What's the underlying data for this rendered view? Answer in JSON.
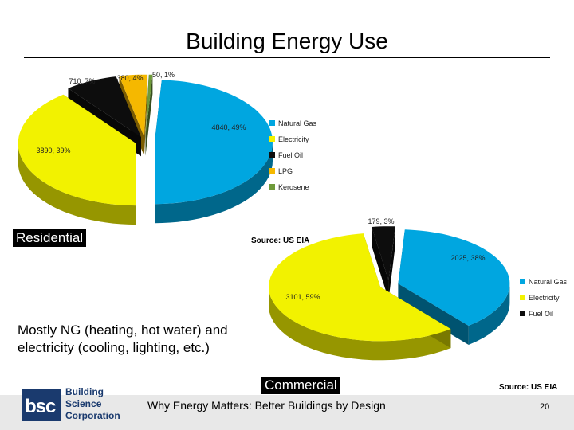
{
  "slide": {
    "title": "Building Energy Use",
    "residential_tag": "Residential",
    "commercial_tag": "Commercial",
    "source_residential": "Source: US EIA",
    "source_commercial": "Source: US EIA",
    "body_line1": "Mostly NG (heating, hot water) and",
    "body_line2": "electricity (cooling, lighting, etc.)",
    "footer_text": "Why Energy Matters: Better Buildings by Design",
    "page_number": "20",
    "logo_abbr": "bsc",
    "logo_line1": "Building",
    "logo_line2": "Science",
    "logo_line3": "Corporation"
  },
  "colors": {
    "natural_gas": "#00a6e0",
    "electricity": "#f2f200",
    "fuel_oil": "#0d0d0d",
    "lpg": "#f5b800",
    "kerosene": "#6e9a3a",
    "footer_band": "#e8e8e8",
    "logo_blue": "#1a3a6e"
  },
  "chart_data": [
    {
      "type": "pie",
      "name": "Residential",
      "categories": [
        "Natural Gas",
        "Electricity",
        "Fuel Oil",
        "LPG",
        "Kerosene"
      ],
      "values": [
        4840,
        3890,
        710,
        380,
        50
      ],
      "data_labels": [
        "4840, 49%",
        "3890, 39%",
        "710, 7%",
        "380, 4%",
        "50, 1%"
      ],
      "legend": [
        "Natural Gas",
        "Electricity",
        "Fuel Oil",
        "LPG",
        "Kerosene"
      ],
      "legend_position": "right",
      "style": "3d exploded"
    },
    {
      "type": "pie",
      "name": "Commercial",
      "categories": [
        "Natural Gas",
        "Electricity",
        "Fuel Oil"
      ],
      "values": [
        2025,
        3101,
        179
      ],
      "data_labels": [
        "2025, 38%",
        "3101, 59%",
        "179, 3%"
      ],
      "legend": [
        "Natural Gas",
        "Electricity",
        "Fuel Oil"
      ],
      "legend_position": "right",
      "style": "3d exploded"
    }
  ]
}
